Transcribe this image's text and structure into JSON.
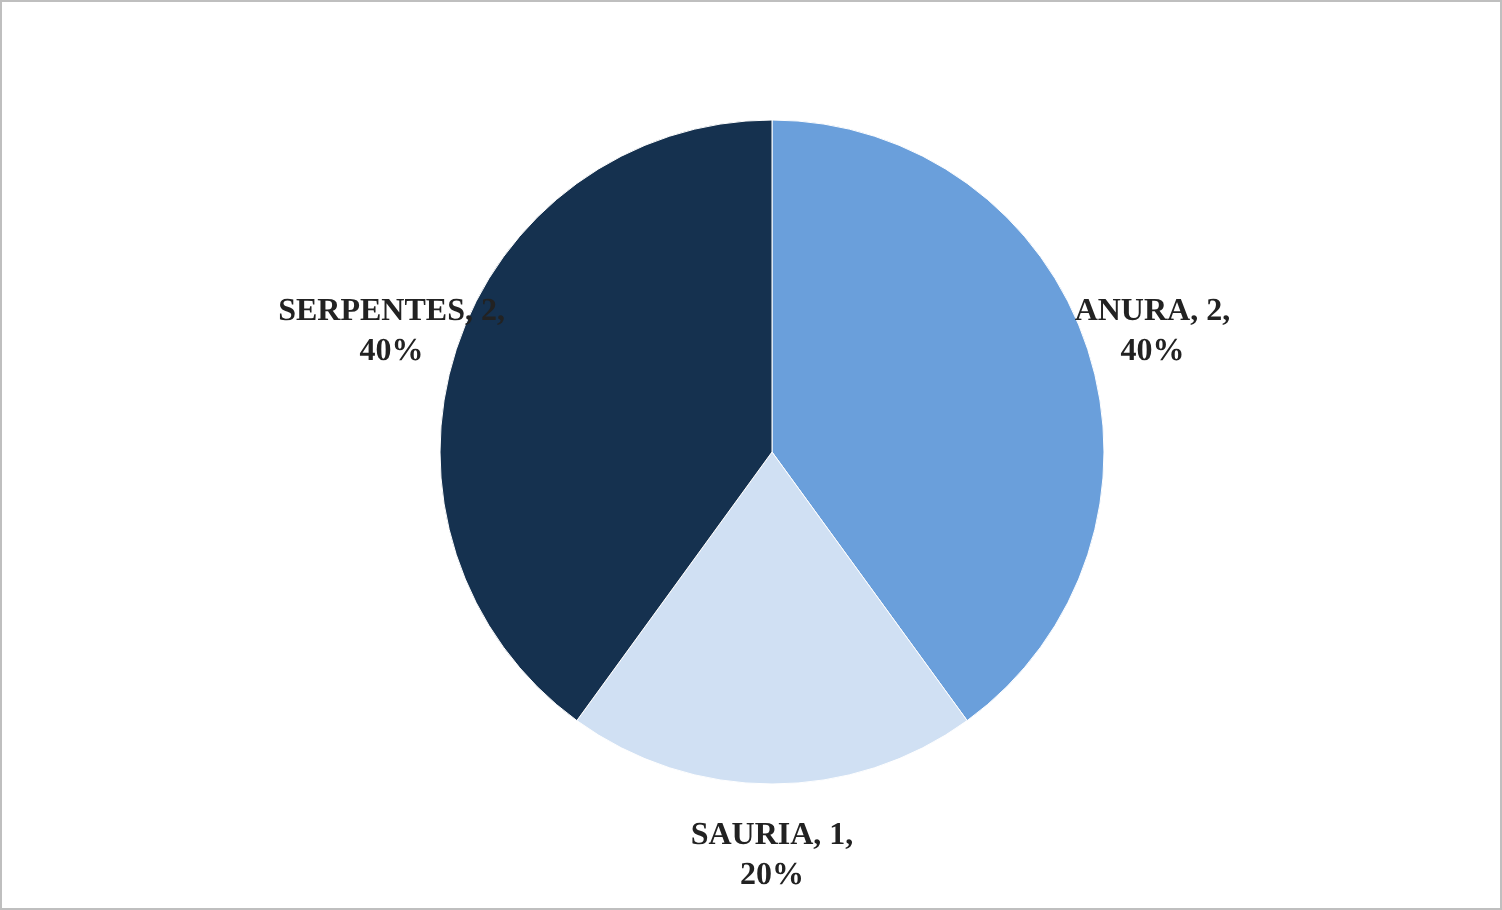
{
  "chart_data": {
    "type": "pie",
    "categories": [
      "ANURA",
      "SAURIA",
      "SERPENTES"
    ],
    "values": [
      2,
      1,
      2
    ],
    "colors": [
      "#6a9fdb",
      "#d0e0f3",
      "#15314f"
    ],
    "value_labels": [
      "2, 40%",
      "1, 20%",
      "2, 40%"
    ],
    "legend": false
  }
}
